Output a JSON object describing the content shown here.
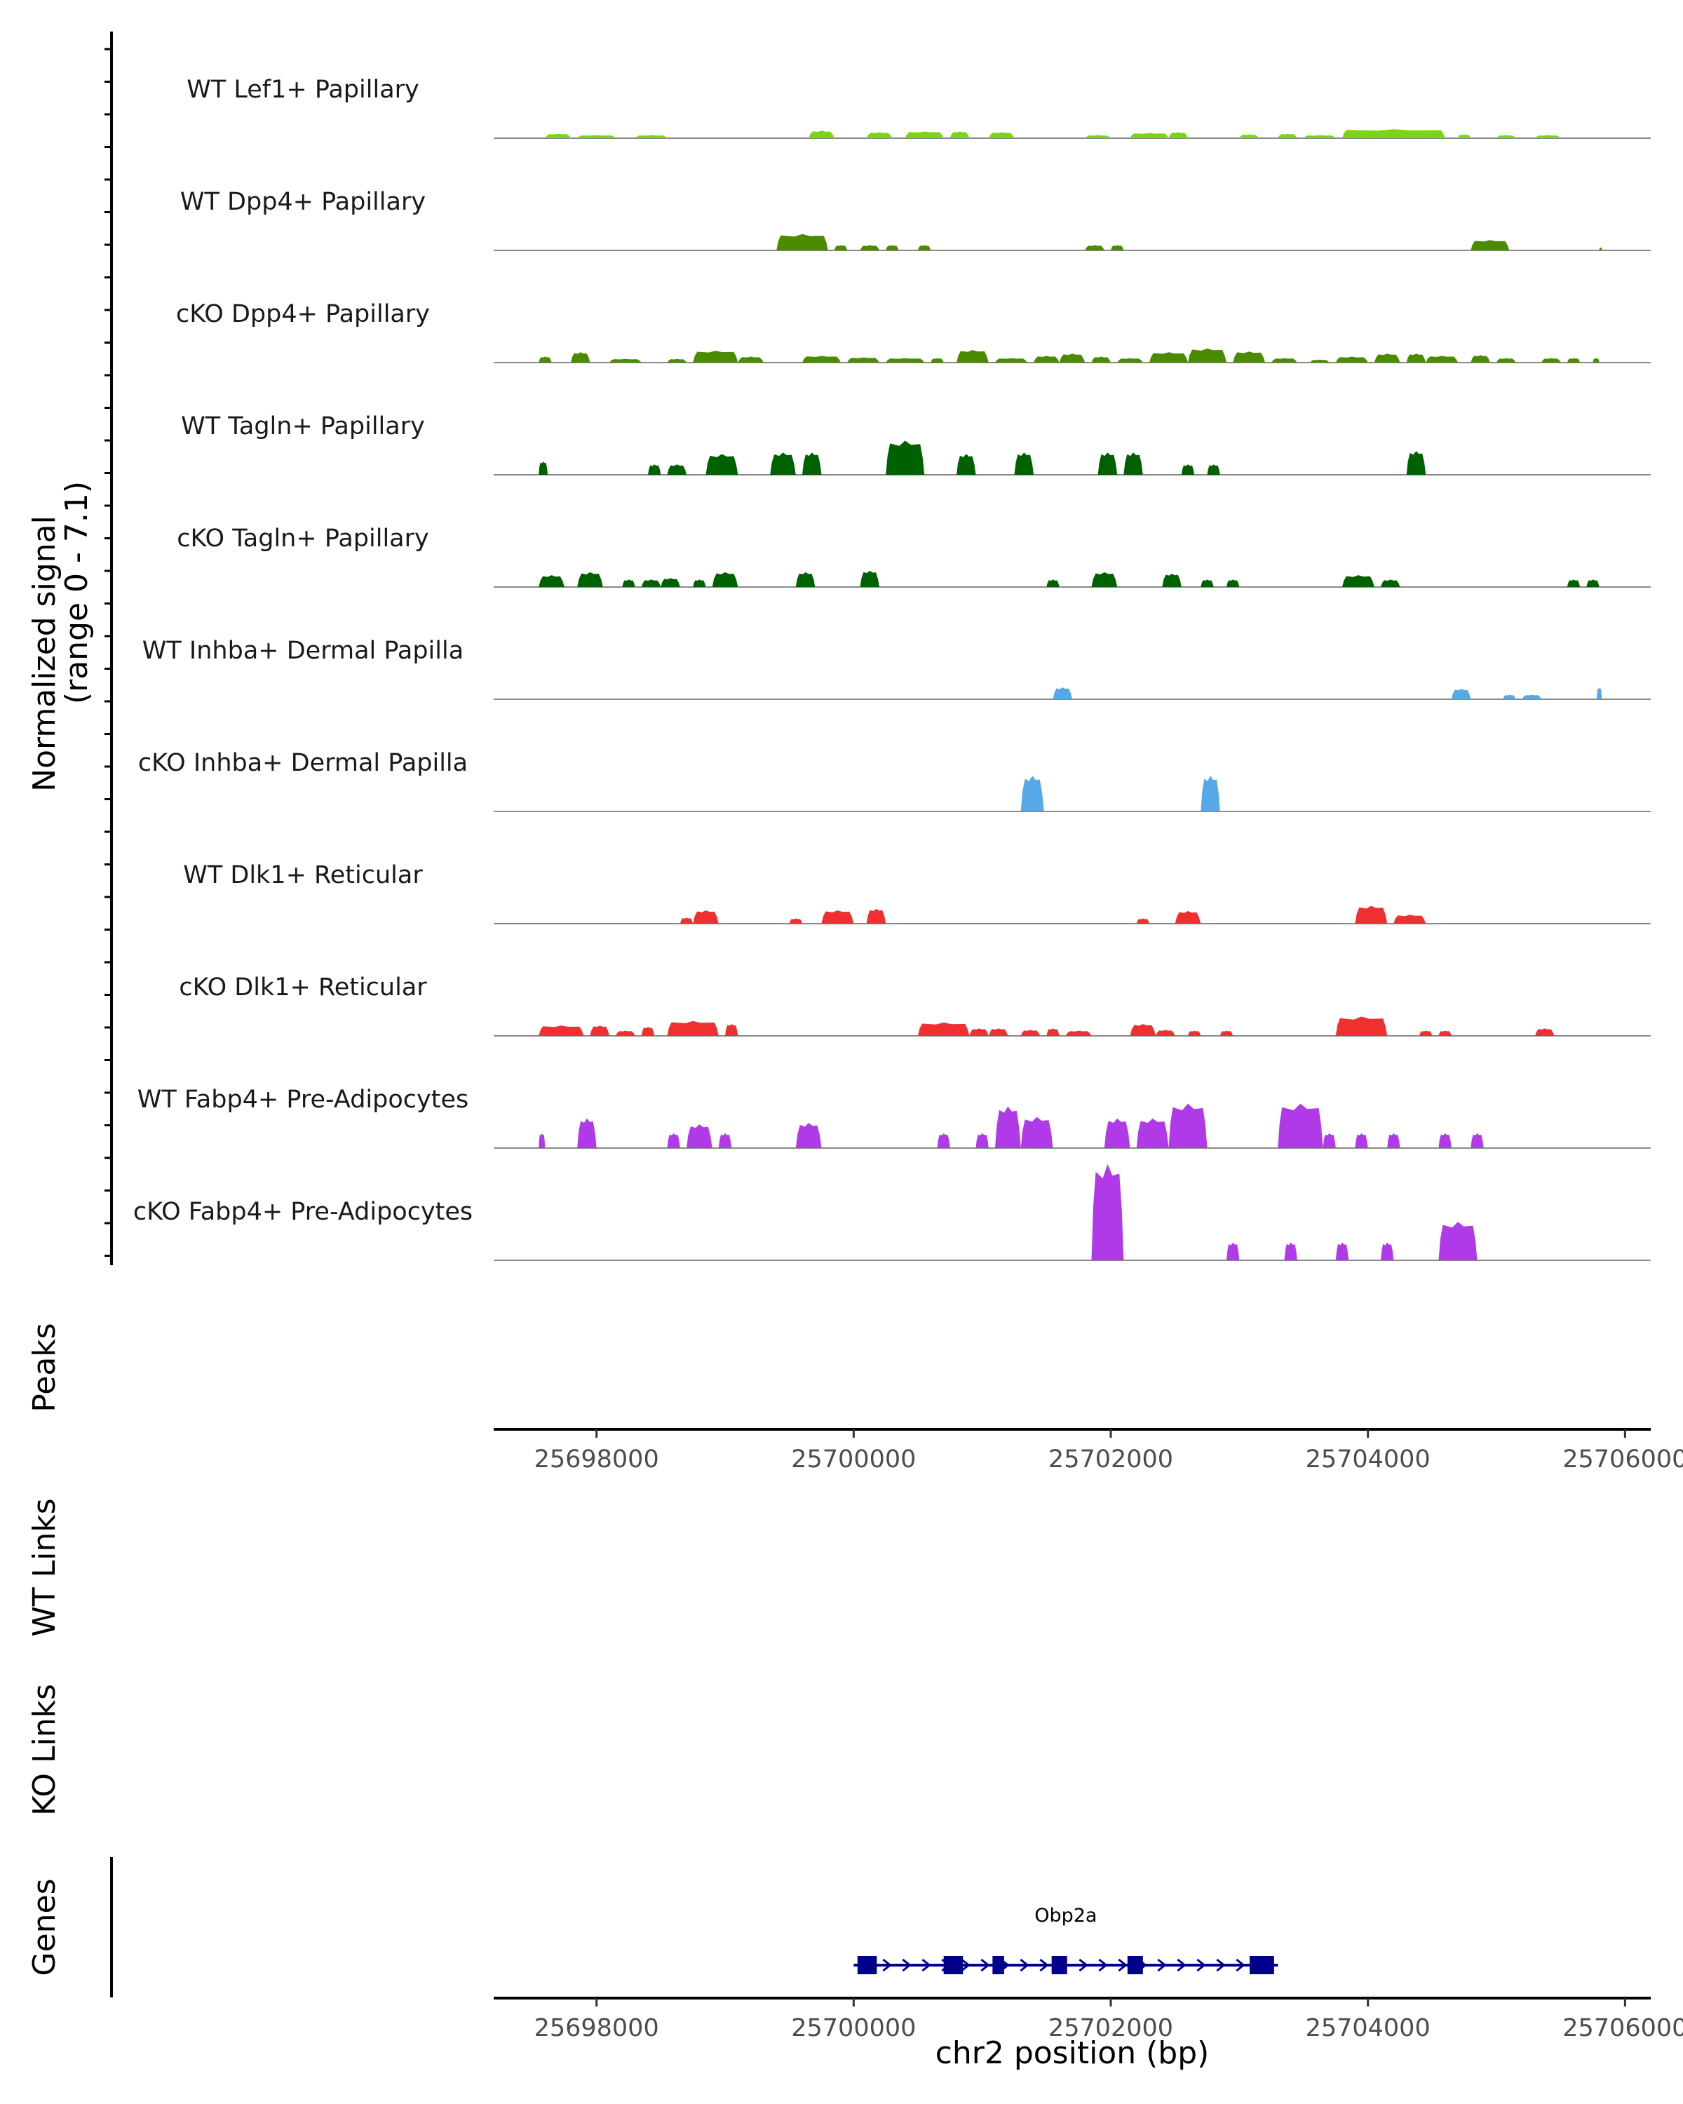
{
  "chart_data": {
    "type": "area",
    "chromosome": "chr2",
    "xlim": [
      25697200,
      25706200
    ],
    "x_ticks": [
      25698000,
      25700000,
      25702000,
      25704000,
      25706000
    ],
    "x_tick_labels": [
      "25698000",
      "25700000",
      "25702000",
      "25704000",
      "25706000"
    ],
    "xlabel": "chr2 position (bp)",
    "ylabel": "Normalized signal",
    "ylabel_range": "(range 0 - 7.1)",
    "ylim": [
      0,
      7.1
    ],
    "tracks": [
      {
        "name": "WT Lef1+ Papillary",
        "color": "#7cd513",
        "peaks": [
          [
            25697600,
            25697800,
            0.3
          ],
          [
            25697850,
            25698150,
            0.2
          ],
          [
            25698300,
            25698550,
            0.2
          ],
          [
            25699650,
            25699850,
            0.5
          ],
          [
            25700100,
            25700300,
            0.4
          ],
          [
            25700400,
            25700700,
            0.45
          ],
          [
            25700750,
            25700900,
            0.45
          ],
          [
            25701050,
            25701250,
            0.4
          ],
          [
            25701800,
            25702000,
            0.2
          ],
          [
            25702150,
            25702450,
            0.35
          ],
          [
            25702450,
            25702600,
            0.4
          ],
          [
            25703000,
            25703150,
            0.25
          ],
          [
            25703300,
            25703450,
            0.3
          ],
          [
            25703500,
            25703750,
            0.2
          ],
          [
            25703800,
            25704600,
            0.6
          ],
          [
            25704700,
            25704800,
            0.25
          ],
          [
            25705000,
            25705150,
            0.2
          ],
          [
            25705300,
            25705500,
            0.2
          ]
        ]
      },
      {
        "name": "WT Dpp4+ Papillary",
        "color": "#4b8b00",
        "peaks": [
          [
            25699400,
            25699800,
            1.1
          ],
          [
            25699850,
            25699950,
            0.35
          ],
          [
            25700050,
            25700200,
            0.35
          ],
          [
            25700250,
            25700350,
            0.35
          ],
          [
            25700500,
            25700600,
            0.35
          ],
          [
            25701800,
            25701950,
            0.35
          ],
          [
            25702000,
            25702100,
            0.35
          ],
          [
            25704800,
            25705100,
            0.7
          ],
          [
            25705800,
            25705820,
            0.2
          ]
        ]
      },
      {
        "name": "cKO Dpp4+ Papillary",
        "color": "#4b8b00",
        "peaks": [
          [
            25697550,
            25697650,
            0.4
          ],
          [
            25697800,
            25697950,
            0.7
          ],
          [
            25698100,
            25698350,
            0.25
          ],
          [
            25698550,
            25698700,
            0.25
          ],
          [
            25698750,
            25699100,
            0.8
          ],
          [
            25699100,
            25699300,
            0.4
          ],
          [
            25699600,
            25699900,
            0.45
          ],
          [
            25699950,
            25700200,
            0.35
          ],
          [
            25700250,
            25700550,
            0.3
          ],
          [
            25700600,
            25700700,
            0.3
          ],
          [
            25700800,
            25701050,
            0.85
          ],
          [
            25701100,
            25701350,
            0.3
          ],
          [
            25701400,
            25701600,
            0.45
          ],
          [
            25701600,
            25701800,
            0.6
          ],
          [
            25701850,
            25702000,
            0.4
          ],
          [
            25702050,
            25702250,
            0.3
          ],
          [
            25702300,
            25702600,
            0.7
          ],
          [
            25702600,
            25702900,
            0.95
          ],
          [
            25702950,
            25703200,
            0.75
          ],
          [
            25703250,
            25703450,
            0.3
          ],
          [
            25703550,
            25703700,
            0.2
          ],
          [
            25703750,
            25704000,
            0.4
          ],
          [
            25704050,
            25704250,
            0.6
          ],
          [
            25704300,
            25704450,
            0.6
          ],
          [
            25704450,
            25704700,
            0.45
          ],
          [
            25704800,
            25704950,
            0.5
          ],
          [
            25705000,
            25705150,
            0.3
          ],
          [
            25705350,
            25705500,
            0.3
          ],
          [
            25705550,
            25705650,
            0.3
          ],
          [
            25705750,
            25705800,
            0.3
          ]
        ]
      },
      {
        "name": "WT Tagln+ Papillary",
        "color": "#006100",
        "peaks": [
          [
            25697550,
            25697620,
            0.9
          ],
          [
            25698400,
            25698500,
            0.7
          ],
          [
            25698550,
            25698700,
            0.7
          ],
          [
            25698850,
            25699100,
            1.4
          ],
          [
            25699350,
            25699550,
            1.5
          ],
          [
            25699600,
            25699750,
            1.5
          ],
          [
            25700250,
            25700550,
            2.3
          ],
          [
            25700800,
            25700950,
            1.4
          ],
          [
            25701250,
            25701400,
            1.5
          ],
          [
            25701900,
            25702050,
            1.5
          ],
          [
            25702100,
            25702250,
            1.5
          ],
          [
            25702550,
            25702650,
            0.7
          ],
          [
            25702750,
            25702850,
            0.7
          ],
          [
            25704300,
            25704450,
            1.6
          ]
        ]
      },
      {
        "name": "cKO Tagln+ Papillary",
        "color": "#006100",
        "peaks": [
          [
            25697550,
            25697750,
            0.8
          ],
          [
            25697850,
            25698050,
            1.0
          ],
          [
            25698200,
            25698300,
            0.5
          ],
          [
            25698350,
            25698500,
            0.5
          ],
          [
            25698500,
            25698650,
            0.6
          ],
          [
            25698750,
            25698850,
            0.5
          ],
          [
            25698900,
            25699100,
            1.0
          ],
          [
            25699550,
            25699700,
            1.0
          ],
          [
            25700050,
            25700200,
            1.1
          ],
          [
            25701500,
            25701600,
            0.5
          ],
          [
            25701850,
            25702050,
            1.0
          ],
          [
            25702400,
            25702550,
            0.9
          ],
          [
            25702700,
            25702800,
            0.5
          ],
          [
            25702900,
            25703000,
            0.5
          ],
          [
            25703800,
            25704050,
            0.8
          ],
          [
            25704100,
            25704250,
            0.5
          ],
          [
            25705550,
            25705650,
            0.5
          ],
          [
            25705700,
            25705800,
            0.5
          ]
        ]
      },
      {
        "name": "WT Inhba+ Dermal Papilla",
        "color": "#56a8e6",
        "peaks": [
          [
            25701550,
            25701700,
            0.8
          ],
          [
            25704650,
            25704800,
            0.7
          ],
          [
            25705050,
            25705150,
            0.3
          ],
          [
            25705200,
            25705350,
            0.3
          ],
          [
            25705780,
            25705820,
            0.8
          ]
        ]
      },
      {
        "name": "cKO Inhba+ Dermal Papilla",
        "color": "#56a8e6",
        "peaks": [
          [
            25701300,
            25701480,
            2.4
          ],
          [
            25702700,
            25702850,
            2.4
          ]
        ]
      },
      {
        "name": "WT Dlk1+ Reticular",
        "color": "#f03030",
        "peaks": [
          [
            25698650,
            25698750,
            0.4
          ],
          [
            25698750,
            25698950,
            0.9
          ],
          [
            25699500,
            25699600,
            0.35
          ],
          [
            25699750,
            25700000,
            0.9
          ],
          [
            25700100,
            25700250,
            1.0
          ],
          [
            25702200,
            25702300,
            0.35
          ],
          [
            25702500,
            25702700,
            0.85
          ],
          [
            25703900,
            25704150,
            1.2
          ],
          [
            25704200,
            25704450,
            0.6
          ]
        ]
      },
      {
        "name": "cKO Dlk1+ Reticular",
        "color": "#f03030",
        "peaks": [
          [
            25697550,
            25697900,
            0.7
          ],
          [
            25697950,
            25698100,
            0.7
          ],
          [
            25698150,
            25698300,
            0.35
          ],
          [
            25698350,
            25698450,
            0.6
          ],
          [
            25698550,
            25698950,
            1.0
          ],
          [
            25699000,
            25699100,
            0.8
          ],
          [
            25700500,
            25700900,
            0.9
          ],
          [
            25700900,
            25701050,
            0.5
          ],
          [
            25701050,
            25701200,
            0.5
          ],
          [
            25701300,
            25701450,
            0.4
          ],
          [
            25701500,
            25701600,
            0.5
          ],
          [
            25701650,
            25701850,
            0.35
          ],
          [
            25702150,
            25702350,
            0.8
          ],
          [
            25702350,
            25702500,
            0.4
          ],
          [
            25702600,
            25702700,
            0.35
          ],
          [
            25702850,
            25702950,
            0.35
          ],
          [
            25703750,
            25704150,
            1.3
          ],
          [
            25704400,
            25704500,
            0.35
          ],
          [
            25704550,
            25704650,
            0.35
          ],
          [
            25705300,
            25705450,
            0.5
          ]
        ]
      },
      {
        "name": "WT Fabp4+ Pre-Adipocytes",
        "color": "#b03ae8",
        "peaks": [
          [
            25697550,
            25697600,
            1.0
          ],
          [
            25697850,
            25698000,
            2.0
          ],
          [
            25698550,
            25698650,
            1.0
          ],
          [
            25698700,
            25698900,
            1.6
          ],
          [
            25698950,
            25699050,
            1.0
          ],
          [
            25699550,
            25699750,
            1.7
          ],
          [
            25700650,
            25700750,
            1.0
          ],
          [
            25700950,
            25701050,
            1.0
          ],
          [
            25701100,
            25701300,
            2.8
          ],
          [
            25701300,
            25701550,
            2.1
          ],
          [
            25701950,
            25702150,
            2.0
          ],
          [
            25702200,
            25702450,
            2.0
          ],
          [
            25702450,
            25702750,
            3.0
          ],
          [
            25703300,
            25703650,
            3.0
          ],
          [
            25703650,
            25703750,
            1.0
          ],
          [
            25703900,
            25704000,
            1.0
          ],
          [
            25704150,
            25704250,
            1.0
          ],
          [
            25704550,
            25704650,
            1.0
          ],
          [
            25704800,
            25704900,
            1.0
          ]
        ]
      },
      {
        "name": "cKO Fabp4+ Pre-Adipocytes",
        "color": "#b03ae8",
        "peaks": [
          [
            25701850,
            25702100,
            6.5
          ],
          [
            25702900,
            25703000,
            1.2
          ],
          [
            25703350,
            25703450,
            1.2
          ],
          [
            25703750,
            25703850,
            1.2
          ],
          [
            25704100,
            25704200,
            1.2
          ],
          [
            25704550,
            25704850,
            2.6
          ]
        ]
      }
    ],
    "extra_track_labels": [
      "Peaks",
      "WT Links",
      "KO Links",
      "Genes"
    ],
    "gene": {
      "name": "Obp2a",
      "start": 25700000,
      "end": 25703300,
      "strand": "+",
      "exons": [
        [
          25700030,
          25700180
        ],
        [
          25700700,
          25700850
        ],
        [
          25701080,
          25701170
        ],
        [
          25701540,
          25701660
        ],
        [
          25702130,
          25702250
        ],
        [
          25703080,
          25703270
        ]
      ]
    }
  }
}
